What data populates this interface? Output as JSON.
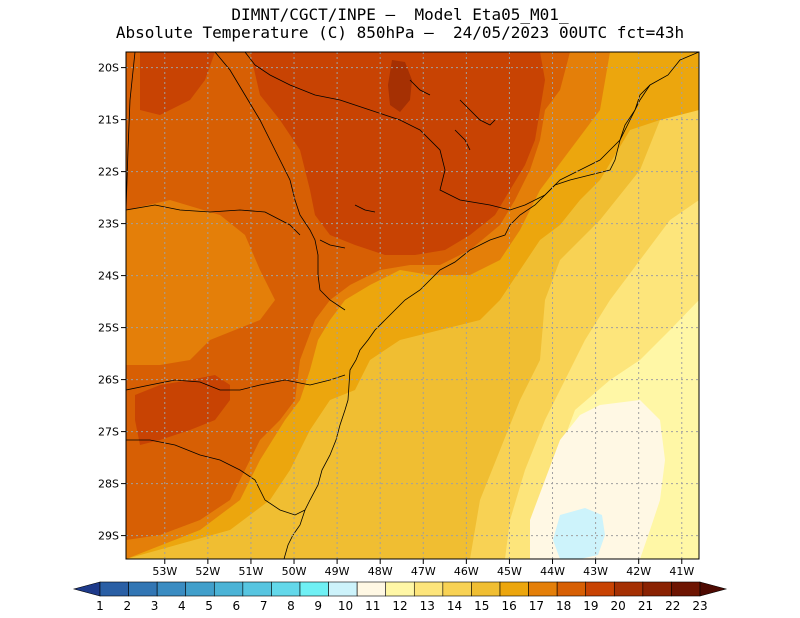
{
  "title": {
    "line1": "DIMNT/CGCT/INPE –  Model Eta05_M01_",
    "line2": "Absolute Temperature (C) 850hPa –  24/05/2023 00UTC fct=43h"
  },
  "map": {
    "lon_range": [
      -53.9,
      -40.6
    ],
    "lat_range": [
      -29.45,
      -19.7
    ],
    "lat_ticks": [
      "20S",
      "21S",
      "22S",
      "23S",
      "24S",
      "25S",
      "26S",
      "27S",
      "28S",
      "29S"
    ],
    "lon_ticks": [
      "53W",
      "52W",
      "51W",
      "50W",
      "49W",
      "48W",
      "47W",
      "46W",
      "45W",
      "44W",
      "43W",
      "42W",
      "41W"
    ],
    "grid": "dotted"
  },
  "colorbar": {
    "labels": [
      "1",
      "2",
      "3",
      "4",
      "5",
      "6",
      "7",
      "8",
      "9",
      "10",
      "11",
      "12",
      "13",
      "14",
      "15",
      "16",
      "17",
      "18",
      "19",
      "20",
      "21",
      "22",
      "23"
    ],
    "colors": [
      "#1e3a8a",
      "#2a5fa5",
      "#3276b4",
      "#3a8cc2",
      "#419fcb",
      "#4bb3d6",
      "#57c5e0",
      "#63d8ea",
      "#6ff0f4",
      "#cdf3fb",
      "#fff8e4",
      "#fff7a6",
      "#fde57b",
      "#f8d254",
      "#f0be32",
      "#eca60d",
      "#e47f09",
      "#d75f04",
      "#c84303",
      "#a53003",
      "#8a2202",
      "#6e1502",
      "#4e0a02"
    ]
  }
}
